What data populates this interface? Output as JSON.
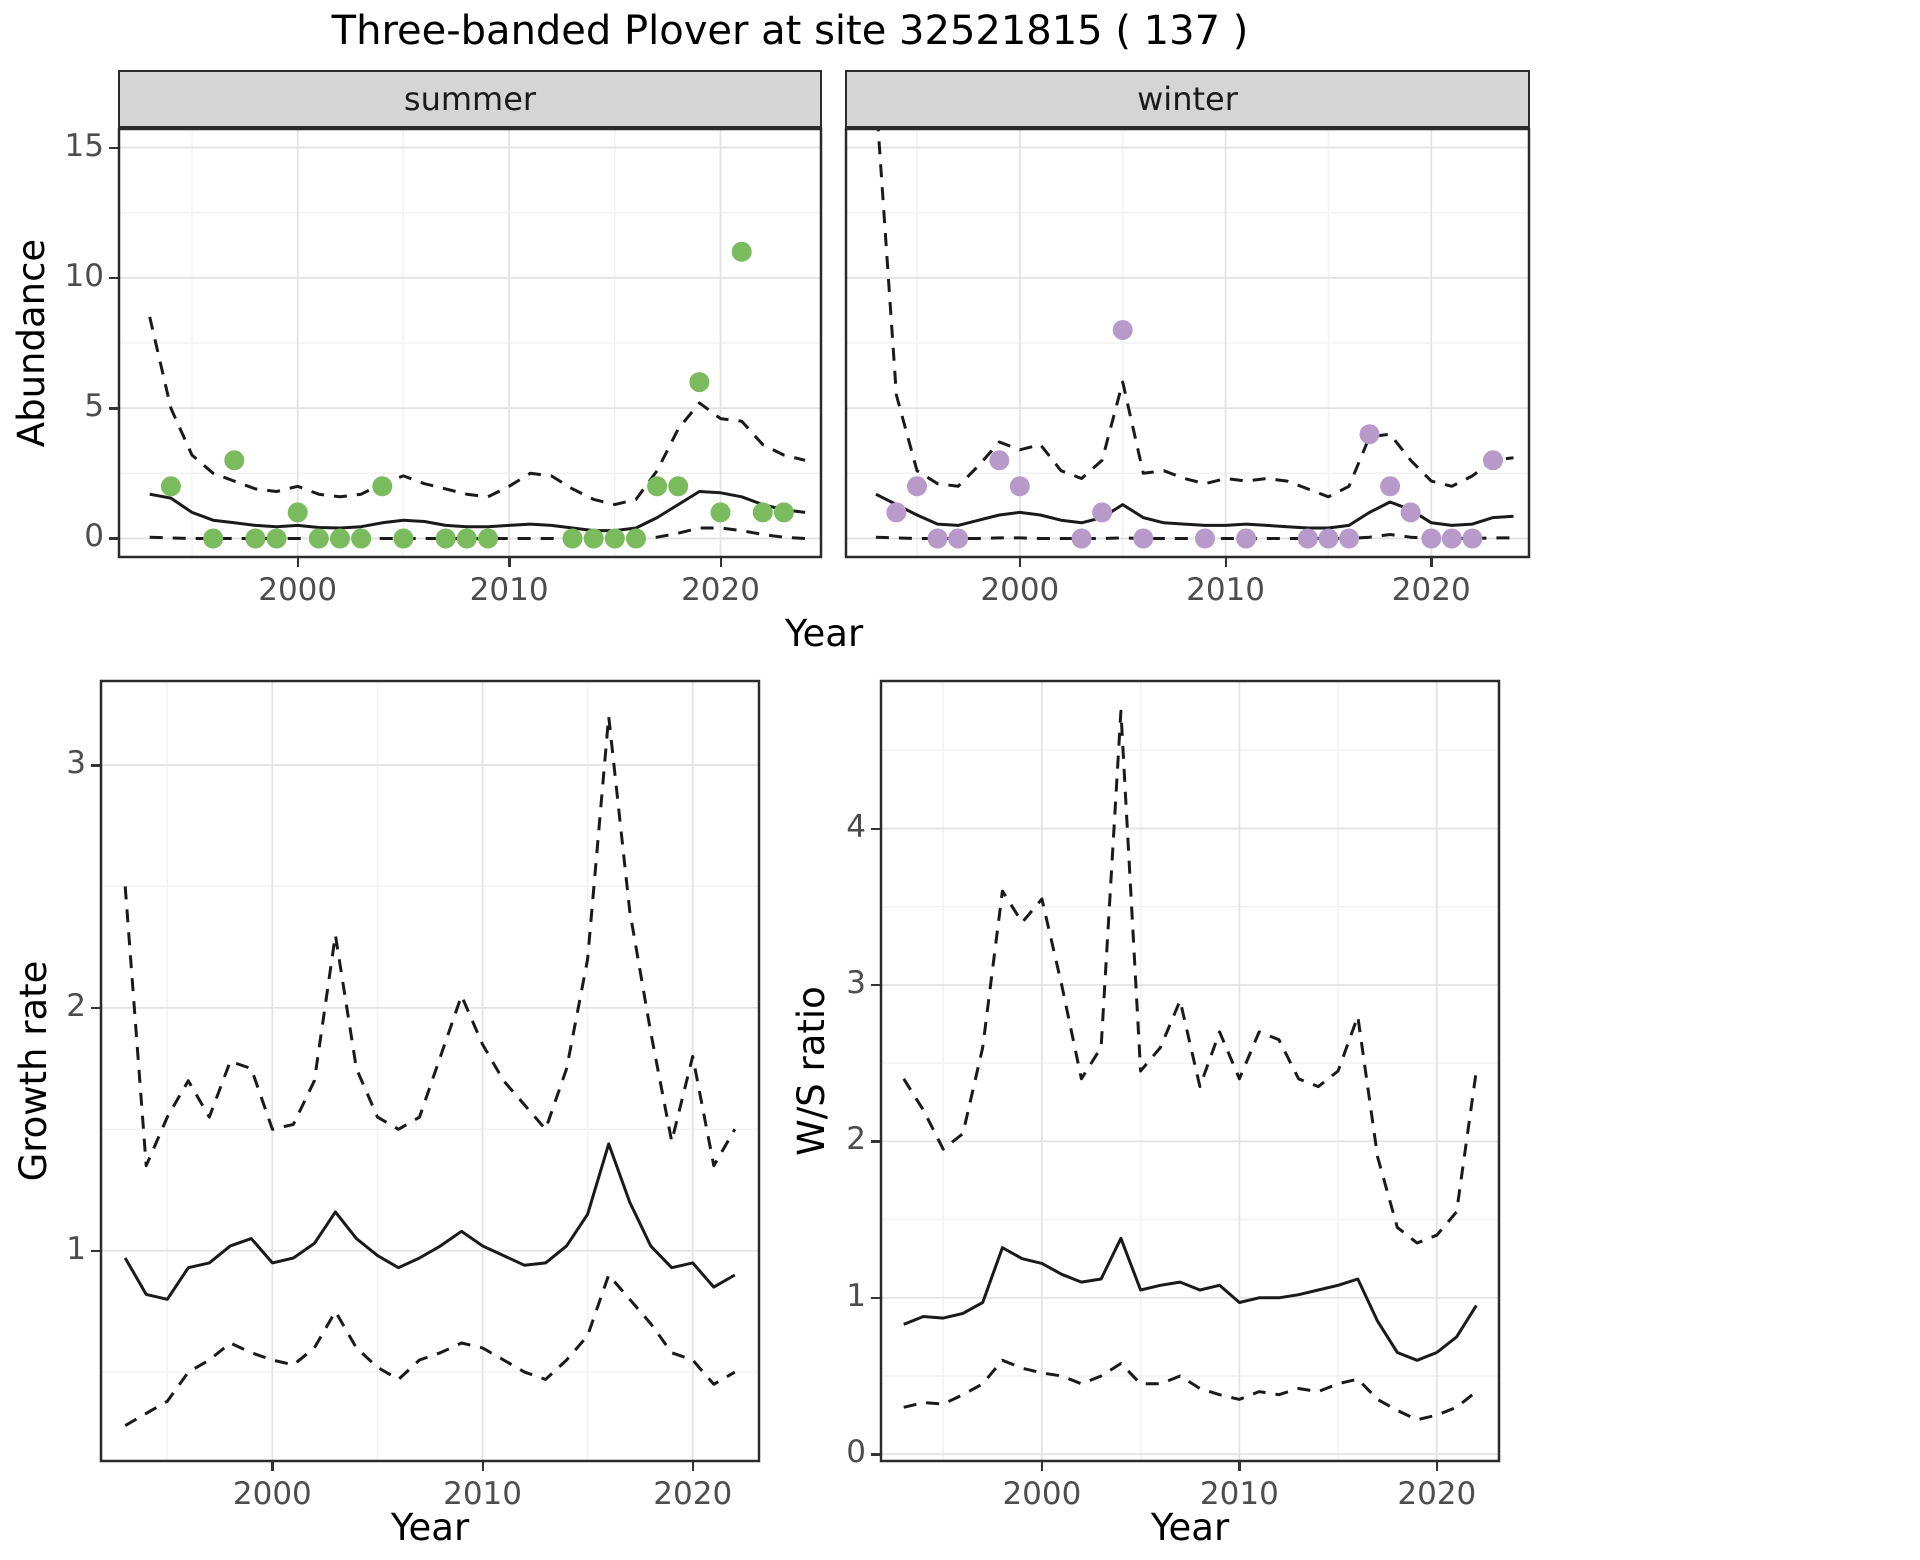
{
  "title": "Three-banded Plover at site 32521815 ( 137 )",
  "facets": [
    {
      "label": "summer"
    },
    {
      "label": "winter"
    }
  ],
  "axis_labels": {
    "abundance": "Abundance",
    "year": "Year",
    "growth_rate": "Growth rate",
    "ws_ratio": "W/S ratio"
  },
  "colors": {
    "summer_point": "#7abb5e",
    "winter_point": "#b79aca",
    "line": "#1a1a1a",
    "grid_major": "#e3e3e3",
    "grid_minor": "#f2f2f2",
    "strip_bg": "#d5d5d5"
  },
  "chart_data": [
    {
      "id": "summer",
      "type": "line",
      "title": "summer",
      "xlabel": "Year",
      "ylabel": "Abundance",
      "xlim": [
        1991.5,
        2024.8
      ],
      "ylim": [
        -0.75,
        15.75
      ],
      "xticks": [
        2000,
        2010,
        2020
      ],
      "yticks": [
        0,
        5,
        10,
        15
      ],
      "x": [
        1993,
        1994,
        1995,
        1996,
        1997,
        1998,
        1999,
        2000,
        2001,
        2002,
        2003,
        2004,
        2005,
        2006,
        2007,
        2008,
        2009,
        2010,
        2011,
        2012,
        2013,
        2014,
        2015,
        2016,
        2017,
        2018,
        2019,
        2020,
        2021,
        2022,
        2023,
        2024
      ],
      "series": [
        {
          "name": "mean",
          "style": "solid",
          "values": [
            1.7,
            1.55,
            1.0,
            0.7,
            0.6,
            0.5,
            0.45,
            0.5,
            0.42,
            0.4,
            0.45,
            0.6,
            0.7,
            0.65,
            0.5,
            0.45,
            0.45,
            0.5,
            0.55,
            0.5,
            0.4,
            0.3,
            0.3,
            0.4,
            0.8,
            1.3,
            1.8,
            1.75,
            1.6,
            1.3,
            1.1,
            1.0
          ]
        },
        {
          "name": "upper_ci",
          "style": "dashed",
          "values": [
            8.5,
            5.0,
            3.2,
            2.5,
            2.2,
            1.9,
            1.8,
            2.0,
            1.7,
            1.6,
            1.7,
            2.1,
            2.4,
            2.1,
            1.9,
            1.7,
            1.6,
            2.0,
            2.5,
            2.4,
            1.9,
            1.5,
            1.3,
            1.5,
            2.6,
            4.2,
            5.2,
            4.6,
            4.5,
            3.6,
            3.2,
            3.0
          ]
        },
        {
          "name": "lower_ci",
          "style": "dashed",
          "values": [
            0.05,
            0.02,
            0,
            0,
            0,
            0,
            0,
            0,
            0,
            0,
            0,
            0,
            0,
            0,
            0,
            0,
            0,
            0,
            0,
            0,
            0,
            0,
            0,
            0,
            0.05,
            0.2,
            0.4,
            0.4,
            0.3,
            0.15,
            0.05,
            0
          ]
        }
      ],
      "points": {
        "name": "observed_counts",
        "color_key": "summer_point",
        "x": [
          1994,
          1996,
          1997,
          1998,
          1999,
          2000,
          2001,
          2002,
          2003,
          2004,
          2005,
          2007,
          2008,
          2009,
          2013,
          2014,
          2015,
          2016,
          2017,
          2018,
          2019,
          2020,
          2021,
          2022,
          2023
        ],
        "y": [
          2,
          0,
          3,
          0,
          0,
          1,
          0,
          0,
          0,
          2,
          0,
          0,
          0,
          0,
          0,
          0,
          0,
          0,
          2,
          2,
          6,
          1,
          11,
          1,
          1
        ]
      }
    },
    {
      "id": "winter",
      "type": "line",
      "title": "winter",
      "xlabel": "Year",
      "ylabel": "Abundance",
      "xlim": [
        1991.5,
        2024.8
      ],
      "ylim": [
        -0.75,
        15.75
      ],
      "xticks": [
        2000,
        2010,
        2020
      ],
      "yticks": [
        0,
        5,
        10,
        15
      ],
      "x": [
        1993,
        1994,
        1995,
        1996,
        1997,
        1998,
        1999,
        2000,
        2001,
        2002,
        2003,
        2004,
        2005,
        2006,
        2007,
        2008,
        2009,
        2010,
        2011,
        2012,
        2013,
        2014,
        2015,
        2016,
        2017,
        2018,
        2019,
        2020,
        2021,
        2022,
        2023,
        2024
      ],
      "series": [
        {
          "name": "mean",
          "style": "solid",
          "values": [
            1.7,
            1.3,
            0.9,
            0.55,
            0.5,
            0.7,
            0.9,
            1.0,
            0.9,
            0.7,
            0.6,
            0.8,
            1.3,
            0.8,
            0.6,
            0.55,
            0.5,
            0.5,
            0.55,
            0.5,
            0.45,
            0.4,
            0.4,
            0.5,
            1.0,
            1.4,
            1.1,
            0.6,
            0.5,
            0.55,
            0.8,
            0.85
          ]
        },
        {
          "name": "upper_ci",
          "style": "dashed",
          "values": [
            17,
            5.5,
            2.6,
            2.1,
            2.0,
            2.8,
            3.7,
            3.4,
            3.6,
            2.6,
            2.3,
            3.0,
            6.0,
            2.5,
            2.6,
            2.3,
            2.1,
            2.3,
            2.2,
            2.3,
            2.2,
            1.9,
            1.6,
            2.0,
            3.9,
            4.0,
            3.0,
            2.2,
            2.0,
            2.4,
            3.0,
            3.1
          ]
        },
        {
          "name": "lower_ci",
          "style": "dashed",
          "values": [
            0.05,
            0.02,
            0,
            0,
            0,
            0,
            0.02,
            0.02,
            0,
            0,
            0,
            0,
            0.02,
            0,
            0,
            0,
            0,
            0,
            0,
            0,
            0,
            0,
            0,
            0,
            0.05,
            0.15,
            0.05,
            0,
            0,
            0,
            0.02,
            0.02
          ]
        }
      ],
      "points": {
        "name": "observed_counts",
        "color_key": "winter_point",
        "x": [
          1994,
          1995,
          1996,
          1997,
          1999,
          2000,
          2003,
          2004,
          2005,
          2006,
          2009,
          2011,
          2014,
          2015,
          2016,
          2017,
          2018,
          2019,
          2020,
          2021,
          2022,
          2023
        ],
        "y": [
          1,
          2,
          0,
          0,
          3,
          2,
          0,
          1,
          8,
          0,
          0,
          0,
          0,
          0,
          0,
          4,
          2,
          1,
          0,
          0,
          0,
          3
        ]
      }
    },
    {
      "id": "growth",
      "type": "line",
      "title": "Growth rate",
      "xlabel": "Year",
      "ylabel": "Growth rate",
      "xlim": [
        1991.8,
        2023.2
      ],
      "ylim": [
        0.13,
        3.35
      ],
      "xticks": [
        2000,
        2010,
        2020
      ],
      "yticks": [
        1,
        2,
        3
      ],
      "x": [
        1993,
        1994,
        1995,
        1996,
        1997,
        1998,
        1999,
        2000,
        2001,
        2002,
        2003,
        2004,
        2005,
        2006,
        2007,
        2008,
        2009,
        2010,
        2011,
        2012,
        2013,
        2014,
        2015,
        2016,
        2017,
        2018,
        2019,
        2020,
        2021,
        2022
      ],
      "series": [
        {
          "name": "mean",
          "style": "solid",
          "values": [
            0.97,
            0.82,
            0.8,
            0.93,
            0.95,
            1.02,
            1.05,
            0.95,
            0.97,
            1.03,
            1.16,
            1.05,
            0.98,
            0.93,
            0.97,
            1.02,
            1.08,
            1.02,
            0.98,
            0.94,
            0.95,
            1.02,
            1.15,
            1.44,
            1.2,
            1.02,
            0.93,
            0.95,
            0.85,
            0.9
          ]
        },
        {
          "name": "upper_ci",
          "style": "dashed",
          "values": [
            2.5,
            1.35,
            1.55,
            1.7,
            1.55,
            1.78,
            1.75,
            1.5,
            1.52,
            1.7,
            2.3,
            1.75,
            1.55,
            1.5,
            1.55,
            1.8,
            2.05,
            1.85,
            1.7,
            1.6,
            1.5,
            1.75,
            2.2,
            3.2,
            2.4,
            1.9,
            1.45,
            1.8,
            1.35,
            1.5
          ]
        },
        {
          "name": "lower_ci",
          "style": "dashed",
          "values": [
            0.28,
            0.33,
            0.38,
            0.5,
            0.55,
            0.62,
            0.58,
            0.55,
            0.53,
            0.6,
            0.75,
            0.6,
            0.52,
            0.47,
            0.55,
            0.58,
            0.62,
            0.6,
            0.55,
            0.5,
            0.47,
            0.55,
            0.65,
            0.9,
            0.8,
            0.7,
            0.58,
            0.55,
            0.45,
            0.5
          ]
        }
      ]
    },
    {
      "id": "ws",
      "type": "line",
      "title": "W/S ratio",
      "xlabel": "Year",
      "ylabel": "W/S ratio",
      "xlim": [
        1991.8,
        2023.2
      ],
      "ylim": [
        -0.05,
        4.95
      ],
      "xticks": [
        2000,
        2010,
        2020
      ],
      "yticks": [
        0,
        1,
        2,
        3,
        4
      ],
      "x": [
        1993,
        1994,
        1995,
        1996,
        1997,
        1998,
        1999,
        2000,
        2001,
        2002,
        2003,
        2004,
        2005,
        2006,
        2007,
        2008,
        2009,
        2010,
        2011,
        2012,
        2013,
        2014,
        2015,
        2016,
        2017,
        2018,
        2019,
        2020,
        2021,
        2022
      ],
      "series": [
        {
          "name": "mean",
          "style": "solid",
          "values": [
            0.83,
            0.88,
            0.87,
            0.9,
            0.97,
            1.32,
            1.25,
            1.22,
            1.15,
            1.1,
            1.12,
            1.38,
            1.05,
            1.08,
            1.1,
            1.05,
            1.08,
            0.97,
            1.0,
            1.0,
            1.02,
            1.05,
            1.08,
            1.12,
            0.85,
            0.65,
            0.6,
            0.65,
            0.75,
            0.95
          ]
        },
        {
          "name": "upper_ci",
          "style": "dashed",
          "values": [
            2.4,
            2.2,
            1.95,
            2.05,
            2.6,
            3.6,
            3.4,
            3.55,
            3.0,
            2.4,
            2.6,
            4.75,
            2.45,
            2.6,
            2.9,
            2.35,
            2.7,
            2.4,
            2.7,
            2.65,
            2.4,
            2.35,
            2.45,
            2.8,
            1.9,
            1.45,
            1.35,
            1.4,
            1.55,
            2.45
          ]
        },
        {
          "name": "lower_ci",
          "style": "dashed",
          "values": [
            0.3,
            0.33,
            0.32,
            0.38,
            0.45,
            0.6,
            0.55,
            0.52,
            0.5,
            0.45,
            0.5,
            0.58,
            0.45,
            0.45,
            0.5,
            0.42,
            0.38,
            0.35,
            0.4,
            0.38,
            0.42,
            0.4,
            0.45,
            0.48,
            0.35,
            0.28,
            0.22,
            0.25,
            0.3,
            0.4
          ]
        }
      ]
    }
  ]
}
